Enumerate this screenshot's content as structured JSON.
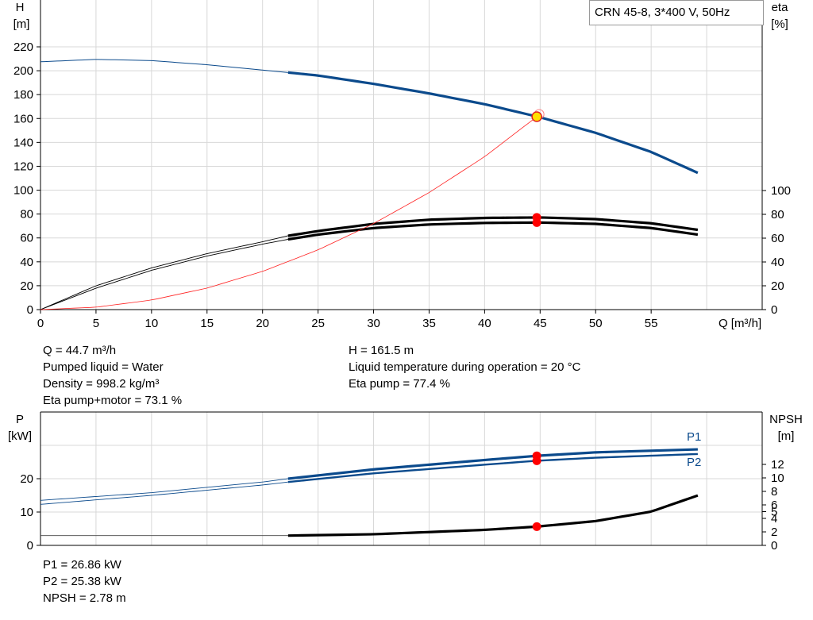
{
  "chart_data": [
    {
      "type": "line",
      "name": "main-curves",
      "title": "CRN 45-8, 3*400 V, 50Hz",
      "xlabel": "Q [m³/h]",
      "ylabel_left": [
        "H",
        "[m]"
      ],
      "ylabel_right": [
        "eta",
        "[%]"
      ],
      "xlim": [
        0,
        65
      ],
      "ylim_left": [
        0,
        220
      ],
      "ylim_right": [
        0,
        100
      ],
      "x_ticks": [
        "0",
        "5",
        "10",
        "15",
        "20",
        "25",
        "30",
        "35",
        "40",
        "45",
        "50",
        "55"
      ],
      "y_left_ticks": [
        "0",
        "20",
        "40",
        "60",
        "80",
        "100",
        "120",
        "140",
        "160",
        "180",
        "200",
        "220"
      ],
      "y_right_ticks": [
        "0",
        "20",
        "40",
        "60",
        "80",
        "100"
      ],
      "grid": true,
      "series": [
        {
          "name": "H",
          "color": "#0b4a8c",
          "x": [
            0,
            5,
            10,
            15,
            20,
            22.3,
            25,
            30,
            35,
            40,
            45,
            50,
            55,
            59.2
          ],
          "values": [
            207.5,
            209.5,
            208.5,
            205,
            200.5,
            198.5,
            196,
            189,
            181,
            172,
            161,
            148,
            132,
            114.5
          ],
          "operating_range": [
            22.3,
            59.2
          ]
        },
        {
          "name": "Eta pump",
          "color": "#000000",
          "axis": "right",
          "x": [
            0,
            5,
            10,
            15,
            20,
            22.3,
            25,
            30,
            35,
            40,
            45,
            50,
            55,
            59.2
          ],
          "values": [
            0,
            20,
            35,
            47,
            57,
            62,
            66,
            72,
            75.5,
            77,
            77.4,
            76,
            72.5,
            67
          ],
          "operating_range": [
            22.3,
            59.2
          ]
        },
        {
          "name": "Eta pump+motor",
          "color": "#000000",
          "axis": "right",
          "x": [
            0,
            5,
            10,
            15,
            20,
            22.3,
            25,
            30,
            35,
            40,
            45,
            50,
            55,
            59.2
          ],
          "values": [
            0,
            18,
            33,
            45,
            55,
            59,
            63,
            68.5,
            71.5,
            72.8,
            73.1,
            72,
            68.5,
            63
          ],
          "operating_range": [
            22.3,
            59.2
          ]
        },
        {
          "name": "System curve",
          "color": "#ff2020",
          "x": [
            0,
            5,
            10,
            15,
            20,
            25,
            30,
            35,
            40,
            44.7
          ],
          "values": [
            0,
            2,
            8,
            18,
            32,
            50,
            72,
            98,
            128,
            161.5
          ]
        }
      ],
      "duty_point": {
        "x": 44.7,
        "H": 161.5,
        "eta_pump": 77.4,
        "eta_total": 73.1
      }
    },
    {
      "type": "line",
      "name": "power-npsh-curves",
      "xlim": [
        0,
        65
      ],
      "ylabel_left": [
        "P",
        "[kW]"
      ],
      "ylabel_right": [
        "NPSH",
        "[m]"
      ],
      "ylim_left": [
        0,
        30
      ],
      "ylim_right": [
        0,
        16
      ],
      "y_left_ticks": [
        "0",
        "10",
        "20"
      ],
      "y_right_ticks": [
        "0",
        "2",
        "4",
        "5",
        "6",
        "8",
        "10",
        "12"
      ],
      "grid": true,
      "series": [
        {
          "name": "P1",
          "color": "#0b4a8c",
          "x": [
            0,
            10,
            20,
            22.3,
            30,
            40,
            44.7,
            50,
            59.2
          ],
          "values": [
            13.5,
            15.8,
            19,
            20,
            22.8,
            25.6,
            26.86,
            27.9,
            28.8
          ],
          "operating_range": [
            22.3,
            59.2
          ]
        },
        {
          "name": "P2",
          "color": "#0b4a8c",
          "x": [
            0,
            10,
            20,
            22.3,
            30,
            40,
            44.7,
            50,
            59.2
          ],
          "values": [
            12.3,
            15,
            18.1,
            19,
            21.6,
            24.2,
            25.38,
            26.3,
            27.4
          ],
          "operating_range": [
            22.3,
            59.2
          ]
        },
        {
          "name": "NPSH",
          "color": "#000000",
          "axis": "right",
          "x": [
            0,
            10,
            20,
            22.3,
            30,
            40,
            44.7,
            50,
            55,
            59.2
          ],
          "values": [
            1.45,
            1.45,
            1.45,
            1.45,
            1.65,
            2.3,
            2.78,
            3.6,
            5,
            7.4
          ],
          "operating_range": [
            22.3,
            59.2
          ]
        }
      ],
      "duty_point": {
        "x": 44.7,
        "P1": 26.86,
        "P2": 25.38,
        "NPSH": 2.78
      }
    }
  ],
  "info_upper_left": [
    "Q = 44.7 m³/h",
    "Pumped liquid = Water",
    "Density = 998.2 kg/m³",
    "Eta pump+motor = 73.1 %"
  ],
  "info_upper_right": [
    "H = 161.5 m",
    "Liquid temperature during operation = 20 °C",
    "Eta pump = 77.4 %"
  ],
  "info_lower": [
    "P1 = 26.86 kW",
    "P2 = 25.38 kW",
    "NPSH = 2.78 m"
  ],
  "colors": {
    "pump_curve": "#0b4a8c",
    "system_curve": "#ff2020",
    "duty_marker": "#ff0000",
    "duty_marker_fill": "#ffe000",
    "grid": "#d8d8d8"
  }
}
